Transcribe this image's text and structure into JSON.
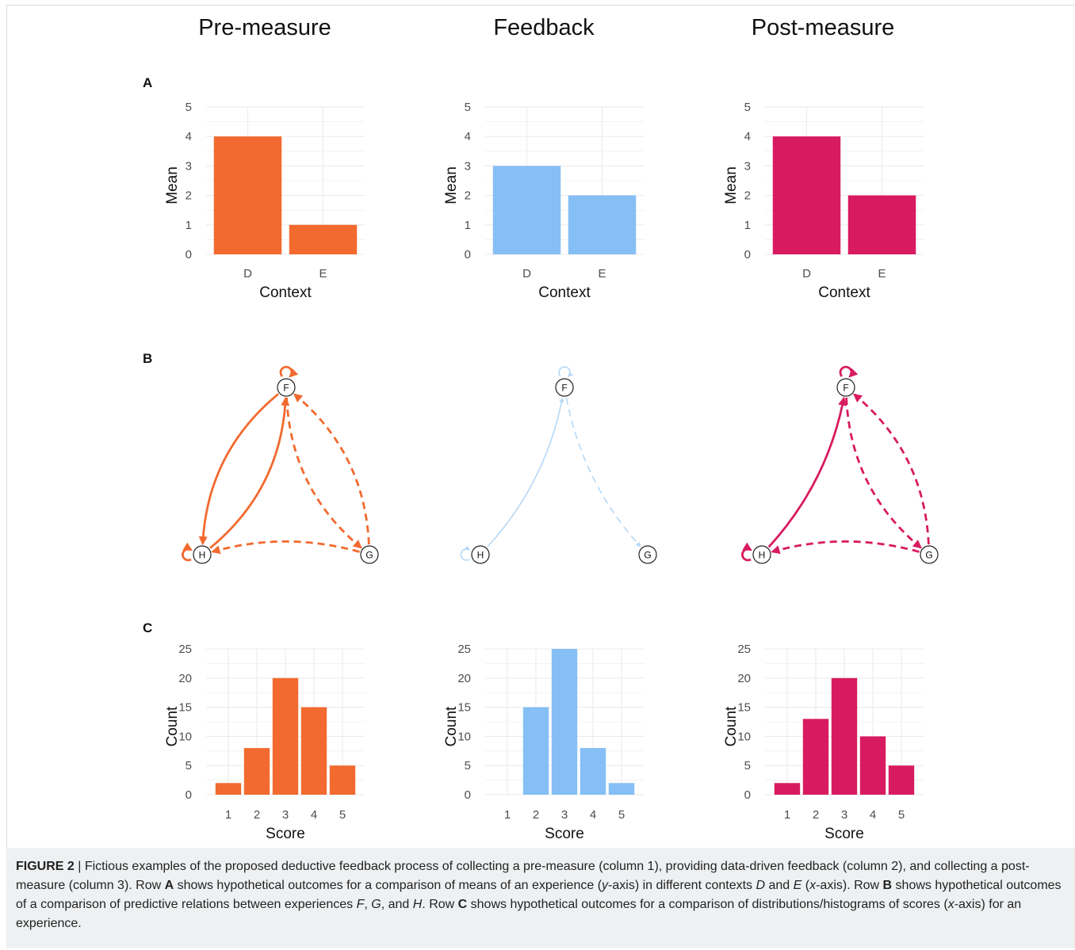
{
  "column_titles": [
    "Pre-measure",
    "Feedback",
    "Post-measure"
  ],
  "row_labels": [
    "A",
    "B",
    "C"
  ],
  "colors": {
    "pre": "#f26a2f",
    "feedback": "#85bff5",
    "feedback_network": "#b5d8f7",
    "post": "#d81b60",
    "grid": "#ebebeb",
    "axis_text": "#4d4d4d"
  },
  "chart_data": [
    {
      "type": "bar",
      "panel": "A",
      "column": "Pre-measure",
      "categories": [
        "D",
        "E"
      ],
      "values": [
        4,
        1
      ],
      "xlabel": "Context",
      "ylabel": "Mean",
      "ylim": [
        0,
        5
      ],
      "yticks": [
        0,
        1,
        2,
        3,
        4,
        5
      ],
      "grid": true
    },
    {
      "type": "bar",
      "panel": "A",
      "column": "Feedback",
      "categories": [
        "D",
        "E"
      ],
      "values": [
        3,
        2
      ],
      "xlabel": "Context",
      "ylabel": "Mean",
      "ylim": [
        0,
        5
      ],
      "yticks": [
        0,
        1,
        2,
        3,
        4,
        5
      ],
      "grid": true
    },
    {
      "type": "bar",
      "panel": "A",
      "column": "Post-measure",
      "categories": [
        "D",
        "E"
      ],
      "values": [
        4,
        2
      ],
      "xlabel": "Context",
      "ylabel": "Mean",
      "ylim": [
        0,
        5
      ],
      "yticks": [
        0,
        1,
        2,
        3,
        4,
        5
      ],
      "grid": true
    },
    {
      "type": "bar",
      "panel": "C",
      "column": "Pre-measure",
      "categories": [
        "1",
        "2",
        "3",
        "4",
        "5"
      ],
      "values": [
        2,
        8,
        20,
        15,
        5
      ],
      "xlabel": "Score",
      "ylabel": "Count",
      "ylim": [
        0,
        25
      ],
      "yticks": [
        0,
        5,
        10,
        15,
        20,
        25
      ],
      "grid": true
    },
    {
      "type": "bar",
      "panel": "C",
      "column": "Feedback",
      "categories": [
        "1",
        "2",
        "3",
        "4",
        "5"
      ],
      "values": [
        0,
        15,
        25,
        8,
        2
      ],
      "xlabel": "Score",
      "ylabel": "Count",
      "ylim": [
        0,
        25
      ],
      "yticks": [
        0,
        5,
        10,
        15,
        20,
        25
      ],
      "grid": true
    },
    {
      "type": "bar",
      "panel": "C",
      "column": "Post-measure",
      "categories": [
        "1",
        "2",
        "3",
        "4",
        "5"
      ],
      "values": [
        2,
        13,
        20,
        10,
        5
      ],
      "xlabel": "Score",
      "ylabel": "Count",
      "ylim": [
        0,
        25
      ],
      "yticks": [
        0,
        5,
        10,
        15,
        20,
        25
      ],
      "grid": true
    }
  ],
  "networks": [
    {
      "column": "Pre-measure",
      "nodes": [
        "F",
        "G",
        "H"
      ],
      "edges": [
        {
          "from": "F",
          "to": "F",
          "style": "solid",
          "weight": "strong"
        },
        {
          "from": "H",
          "to": "H",
          "style": "solid",
          "weight": "strong"
        },
        {
          "from": "H",
          "to": "F",
          "style": "solid",
          "weight": "strong"
        },
        {
          "from": "F",
          "to": "H",
          "style": "solid",
          "weight": "strong"
        },
        {
          "from": "F",
          "to": "G",
          "style": "dashed",
          "weight": "strong"
        },
        {
          "from": "G",
          "to": "F",
          "style": "dashed",
          "weight": "strong"
        },
        {
          "from": "G",
          "to": "H",
          "style": "dashed",
          "weight": "strong"
        }
      ]
    },
    {
      "column": "Feedback",
      "nodes": [
        "F",
        "G",
        "H"
      ],
      "edges": [
        {
          "from": "F",
          "to": "F",
          "style": "solid",
          "weight": "weak"
        },
        {
          "from": "H",
          "to": "H",
          "style": "solid",
          "weight": "weak"
        },
        {
          "from": "H",
          "to": "F",
          "style": "solid",
          "weight": "weak"
        },
        {
          "from": "F",
          "to": "G",
          "style": "dashed",
          "weight": "weak"
        }
      ]
    },
    {
      "column": "Post-measure",
      "nodes": [
        "F",
        "G",
        "H"
      ],
      "edges": [
        {
          "from": "F",
          "to": "F",
          "style": "solid",
          "weight": "strong"
        },
        {
          "from": "H",
          "to": "H",
          "style": "solid",
          "weight": "strong"
        },
        {
          "from": "H",
          "to": "F",
          "style": "solid",
          "weight": "strong"
        },
        {
          "from": "F",
          "to": "G",
          "style": "dashed",
          "weight": "strong"
        },
        {
          "from": "G",
          "to": "F",
          "style": "dashed",
          "weight": "strong"
        },
        {
          "from": "G",
          "to": "H",
          "style": "dashed",
          "weight": "strong"
        }
      ]
    }
  ],
  "caption": {
    "figure_label": "FIGURE 2",
    "separator": " | ",
    "segments": [
      {
        "text": "Fictious examples of the proposed deductive feedback process of collecting a pre-measure (column 1), providing data-driven feedback (column 2), and collecting a post-measure (column 3). Row ",
        "style": "normal"
      },
      {
        "text": "A",
        "style": "bold"
      },
      {
        "text": " shows hypothetical outcomes for a comparison of means of an experience (",
        "style": "normal"
      },
      {
        "text": "y",
        "style": "italic"
      },
      {
        "text": "-axis) in different contexts ",
        "style": "normal"
      },
      {
        "text": "D",
        "style": "italic"
      },
      {
        "text": " and ",
        "style": "normal"
      },
      {
        "text": "E",
        "style": "italic"
      },
      {
        "text": " (",
        "style": "normal"
      },
      {
        "text": "x",
        "style": "italic"
      },
      {
        "text": "-axis). Row ",
        "style": "normal"
      },
      {
        "text": "B",
        "style": "bold"
      },
      {
        "text": " shows hypothetical outcomes of a comparison of predictive relations between experiences ",
        "style": "normal"
      },
      {
        "text": "F",
        "style": "italic"
      },
      {
        "text": ", ",
        "style": "normal"
      },
      {
        "text": "G",
        "style": "italic"
      },
      {
        "text": ", and ",
        "style": "normal"
      },
      {
        "text": "H",
        "style": "italic"
      },
      {
        "text": ". Row ",
        "style": "normal"
      },
      {
        "text": "C",
        "style": "bold"
      },
      {
        "text": " shows hypothetical outcomes for a comparison of distributions/histograms of scores (",
        "style": "normal"
      },
      {
        "text": "x",
        "style": "italic"
      },
      {
        "text": "-axis) for an experience.",
        "style": "normal"
      }
    ]
  }
}
